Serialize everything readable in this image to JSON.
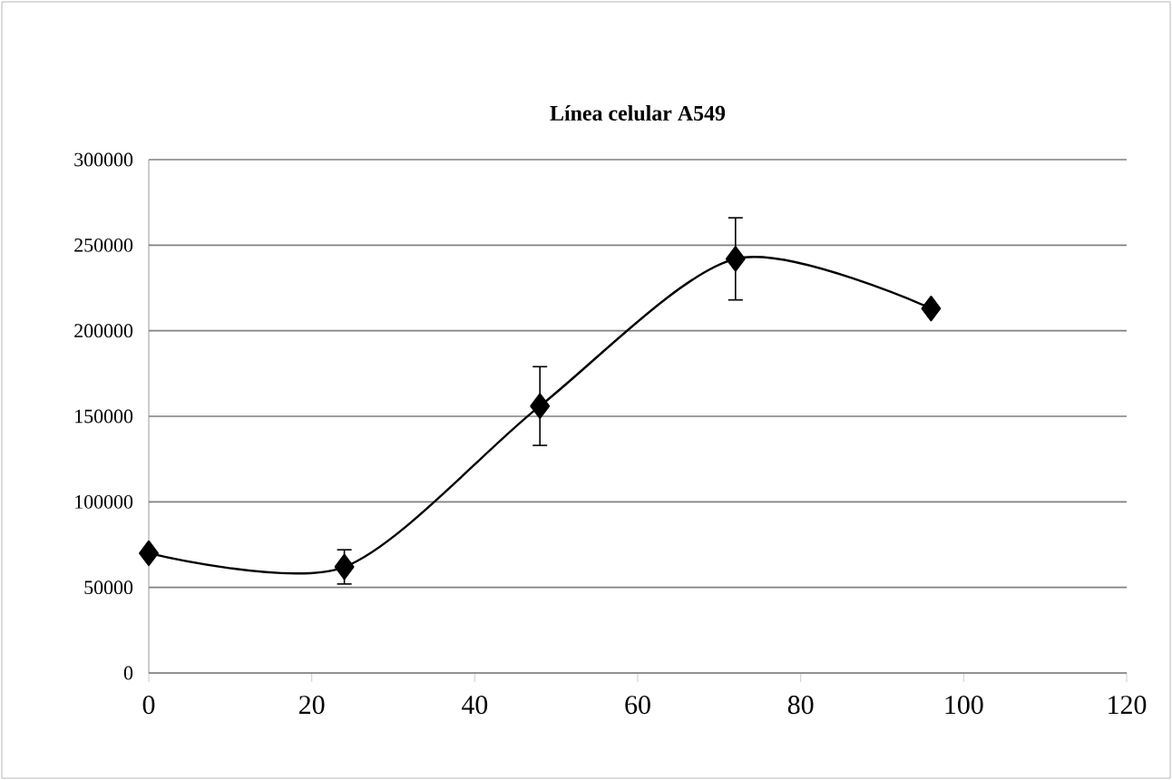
{
  "chart_data": {
    "type": "line",
    "title": "Línea celular A549",
    "x": [
      0,
      24,
      48,
      72,
      96
    ],
    "series": [
      {
        "color": "#000000",
        "values": [
          70000,
          62000,
          156000,
          242000,
          213000
        ],
        "errors": [
          null,
          10000,
          23000,
          24000,
          null
        ]
      }
    ],
    "xlim": [
      0,
      120
    ],
    "xticks": [
      0,
      20,
      40,
      60,
      80,
      100,
      120
    ],
    "ylim": [
      0,
      300000
    ],
    "yticks": [
      0,
      50000,
      100000,
      150000,
      200000,
      250000,
      300000
    ],
    "grid": "y",
    "marker": "diamond",
    "line_style": "solid"
  }
}
